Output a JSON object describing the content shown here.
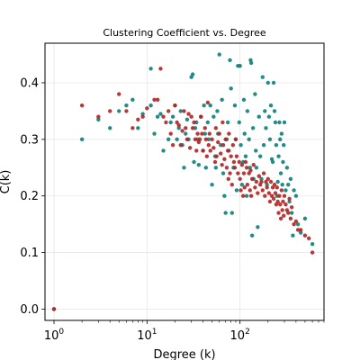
{
  "chart_data": {
    "type": "scatter",
    "title": "Clustering Coefficient vs. Degree",
    "xlabel": "Degree (k)",
    "ylabel": "C(k)",
    "xscale": "log",
    "xlim": [
      0.8,
      800
    ],
    "ylim": [
      -0.02,
      0.47
    ],
    "xticks": [
      {
        "value": 1,
        "base": "10",
        "exp": "0"
      },
      {
        "value": 10,
        "base": "10",
        "exp": "1"
      },
      {
        "value": 100,
        "base": "10",
        "exp": "2"
      }
    ],
    "yticks": [
      {
        "value": 0.0,
        "label": "0.0"
      },
      {
        "value": 0.1,
        "label": "0.1"
      },
      {
        "value": 0.2,
        "label": "0.2"
      },
      {
        "value": 0.3,
        "label": "0.3"
      },
      {
        "value": 0.4,
        "label": "0.4"
      }
    ],
    "grid": true,
    "series": [
      {
        "color": "#0a7f7a",
        "points": [
          [
            2,
            0.3
          ],
          [
            3,
            0.335
          ],
          [
            4,
            0.32
          ],
          [
            5,
            0.35
          ],
          [
            6,
            0.36
          ],
          [
            7,
            0.37
          ],
          [
            8,
            0.32
          ],
          [
            9,
            0.345
          ],
          [
            11,
            0.36
          ],
          [
            11,
            0.425
          ],
          [
            12,
            0.31
          ],
          [
            13,
            0.34
          ],
          [
            14,
            0.345
          ],
          [
            15,
            0.28
          ],
          [
            17,
            0.3
          ],
          [
            18,
            0.33
          ],
          [
            19,
            0.34
          ],
          [
            20,
            0.36
          ],
          [
            21,
            0.3
          ],
          [
            22,
            0.32
          ],
          [
            23,
            0.35
          ],
          [
            24,
            0.29
          ],
          [
            25,
            0.25
          ],
          [
            26,
            0.31
          ],
          [
            27,
            0.335
          ],
          [
            28,
            0.3
          ],
          [
            30,
            0.41
          ],
          [
            31,
            0.415
          ],
          [
            32,
            0.26
          ],
          [
            33,
            0.32
          ],
          [
            34,
            0.33
          ],
          [
            35,
            0.3
          ],
          [
            36,
            0.255
          ],
          [
            38,
            0.34
          ],
          [
            40,
            0.28
          ],
          [
            41,
            0.36
          ],
          [
            42,
            0.31
          ],
          [
            43,
            0.25
          ],
          [
            45,
            0.33
          ],
          [
            46,
            0.3
          ],
          [
            48,
            0.36
          ],
          [
            50,
            0.22
          ],
          [
            52,
            0.34
          ],
          [
            54,
            0.27
          ],
          [
            55,
            0.25
          ],
          [
            57,
            0.35
          ],
          [
            58,
            0.31
          ],
          [
            60,
            0.45
          ],
          [
            62,
            0.29
          ],
          [
            64,
            0.37
          ],
          [
            66,
            0.24
          ],
          [
            68,
            0.2
          ],
          [
            70,
            0.17
          ],
          [
            72,
            0.3
          ],
          [
            74,
            0.33
          ],
          [
            76,
            0.28
          ],
          [
            78,
            0.44
          ],
          [
            80,
            0.39
          ],
          [
            82,
            0.17
          ],
          [
            85,
            0.25
          ],
          [
            88,
            0.36
          ],
          [
            90,
            0.3
          ],
          [
            92,
            0.21
          ],
          [
            95,
            0.43
          ],
          [
            98,
            0.33
          ],
          [
            100,
            0.43
          ],
          [
            102,
            0.29
          ],
          [
            105,
            0.22
          ],
          [
            108,
            0.26
          ],
          [
            110,
            0.37
          ],
          [
            112,
            0.31
          ],
          [
            115,
            0.27
          ],
          [
            118,
            0.2
          ],
          [
            120,
            0.35
          ],
          [
            125,
            0.3
          ],
          [
            128,
            0.25
          ],
          [
            130,
            0.44
          ],
          [
            132,
            0.435
          ],
          [
            135,
            0.13
          ],
          [
            138,
            0.32
          ],
          [
            140,
            0.23
          ],
          [
            145,
            0.38
          ],
          [
            148,
            0.28
          ],
          [
            150,
            0.25
          ],
          [
            155,
            0.145
          ],
          [
            160,
            0.34
          ],
          [
            165,
            0.27
          ],
          [
            170,
            0.23
          ],
          [
            175,
            0.41
          ],
          [
            180,
            0.29
          ],
          [
            185,
            0.35
          ],
          [
            190,
            0.32
          ],
          [
            195,
            0.22
          ],
          [
            200,
            0.4
          ],
          [
            205,
            0.34
          ],
          [
            210,
            0.3
          ],
          [
            215,
            0.36
          ],
          [
            220,
            0.265
          ],
          [
            225,
            0.26
          ],
          [
            230,
            0.4
          ],
          [
            235,
            0.35
          ],
          [
            240,
            0.33
          ],
          [
            245,
            0.29
          ],
          [
            250,
            0.2
          ],
          [
            255,
            0.225
          ],
          [
            260,
            0.27
          ],
          [
            265,
            0.33
          ],
          [
            270,
            0.3
          ],
          [
            275,
            0.24
          ],
          [
            280,
            0.31
          ],
          [
            285,
            0.22
          ],
          [
            290,
            0.26
          ],
          [
            295,
            0.29
          ],
          [
            300,
            0.33
          ],
          [
            310,
            0.21
          ],
          [
            320,
            0.25
          ],
          [
            330,
            0.22
          ],
          [
            340,
            0.19
          ],
          [
            350,
            0.23
          ],
          [
            360,
            0.17
          ],
          [
            370,
            0.13
          ],
          [
            380,
            0.21
          ],
          [
            400,
            0.2
          ],
          [
            420,
            0.15
          ],
          [
            450,
            0.135
          ],
          [
            500,
            0.16
          ],
          [
            600,
            0.115
          ],
          [
            1,
            0.0
          ]
        ]
      },
      {
        "color": "#b22222",
        "points": [
          [
            1,
            0.0
          ],
          [
            2,
            0.36
          ],
          [
            3,
            0.34
          ],
          [
            4,
            0.35
          ],
          [
            5,
            0.38
          ],
          [
            6,
            0.35
          ],
          [
            7,
            0.32
          ],
          [
            8,
            0.335
          ],
          [
            9,
            0.34
          ],
          [
            10,
            0.355
          ],
          [
            12,
            0.37
          ],
          [
            13,
            0.37
          ],
          [
            14,
            0.425
          ],
          [
            15,
            0.34
          ],
          [
            16,
            0.33
          ],
          [
            17,
            0.35
          ],
          [
            18,
            0.31
          ],
          [
            19,
            0.29
          ],
          [
            20,
            0.36
          ],
          [
            21,
            0.33
          ],
          [
            22,
            0.325
          ],
          [
            23,
            0.29
          ],
          [
            24,
            0.315
          ],
          [
            25,
            0.35
          ],
          [
            26,
            0.32
          ],
          [
            27,
            0.3
          ],
          [
            28,
            0.345
          ],
          [
            29,
            0.285
          ],
          [
            30,
            0.34
          ],
          [
            31,
            0.32
          ],
          [
            32,
            0.33
          ],
          [
            33,
            0.3
          ],
          [
            34,
            0.28
          ],
          [
            35,
            0.31
          ],
          [
            36,
            0.295
          ],
          [
            37,
            0.3
          ],
          [
            38,
            0.34
          ],
          [
            39,
            0.31
          ],
          [
            40,
            0.28
          ],
          [
            42,
            0.32
          ],
          [
            43,
            0.3
          ],
          [
            44,
            0.27
          ],
          [
            45,
            0.365
          ],
          [
            46,
            0.29
          ],
          [
            47,
            0.31
          ],
          [
            48,
            0.28
          ],
          [
            50,
            0.3
          ],
          [
            52,
            0.285
          ],
          [
            54,
            0.26
          ],
          [
            55,
            0.32
          ],
          [
            56,
            0.27
          ],
          [
            58,
            0.295
          ],
          [
            60,
            0.31
          ],
          [
            62,
            0.275
          ],
          [
            64,
            0.255
          ],
          [
            65,
            0.33
          ],
          [
            66,
            0.29
          ],
          [
            68,
            0.265
          ],
          [
            70,
            0.3
          ],
          [
            72,
            0.25
          ],
          [
            74,
            0.28
          ],
          [
            75,
            0.23
          ],
          [
            76,
            0.31
          ],
          [
            78,
            0.24
          ],
          [
            80,
            0.27
          ],
          [
            82,
            0.22
          ],
          [
            84,
            0.29
          ],
          [
            86,
            0.26
          ],
          [
            88,
            0.25
          ],
          [
            90,
            0.3
          ],
          [
            92,
            0.27
          ],
          [
            95,
            0.24
          ],
          [
            98,
            0.26
          ],
          [
            100,
            0.23
          ],
          [
            102,
            0.21
          ],
          [
            105,
            0.255
          ],
          [
            108,
            0.2
          ],
          [
            110,
            0.24
          ],
          [
            112,
            0.215
          ],
          [
            115,
            0.26
          ],
          [
            118,
            0.25
          ],
          [
            120,
            0.22
          ],
          [
            125,
            0.24
          ],
          [
            128,
            0.21
          ],
          [
            130,
            0.245
          ],
          [
            132,
            0.2
          ],
          [
            135,
            0.23
          ],
          [
            140,
            0.255
          ],
          [
            145,
            0.215
          ],
          [
            150,
            0.225
          ],
          [
            155,
            0.205
          ],
          [
            160,
            0.235
          ],
          [
            165,
            0.22
          ],
          [
            170,
            0.225
          ],
          [
            175,
            0.21
          ],
          [
            180,
            0.24
          ],
          [
            185,
            0.2
          ],
          [
            190,
            0.225
          ],
          [
            195,
            0.215
          ],
          [
            200,
            0.23
          ],
          [
            205,
            0.205
          ],
          [
            210,
            0.19
          ],
          [
            215,
            0.225
          ],
          [
            220,
            0.2
          ],
          [
            225,
            0.215
          ],
          [
            230,
            0.195
          ],
          [
            235,
            0.22
          ],
          [
            240,
            0.205
          ],
          [
            245,
            0.185
          ],
          [
            250,
            0.215
          ],
          [
            255,
            0.19
          ],
          [
            260,
            0.17
          ],
          [
            265,
            0.2
          ],
          [
            270,
            0.185
          ],
          [
            275,
            0.16
          ],
          [
            280,
            0.21
          ],
          [
            285,
            0.175
          ],
          [
            290,
            0.19
          ],
          [
            295,
            0.165
          ],
          [
            300,
            0.2
          ],
          [
            310,
            0.185
          ],
          [
            320,
            0.175
          ],
          [
            330,
            0.17
          ],
          [
            340,
            0.195
          ],
          [
            350,
            0.16
          ],
          [
            360,
            0.18
          ],
          [
            380,
            0.15
          ],
          [
            400,
            0.155
          ],
          [
            420,
            0.14
          ],
          [
            450,
            0.14
          ],
          [
            500,
            0.13
          ],
          [
            550,
            0.125
          ],
          [
            600,
            0.1
          ]
        ]
      }
    ]
  }
}
